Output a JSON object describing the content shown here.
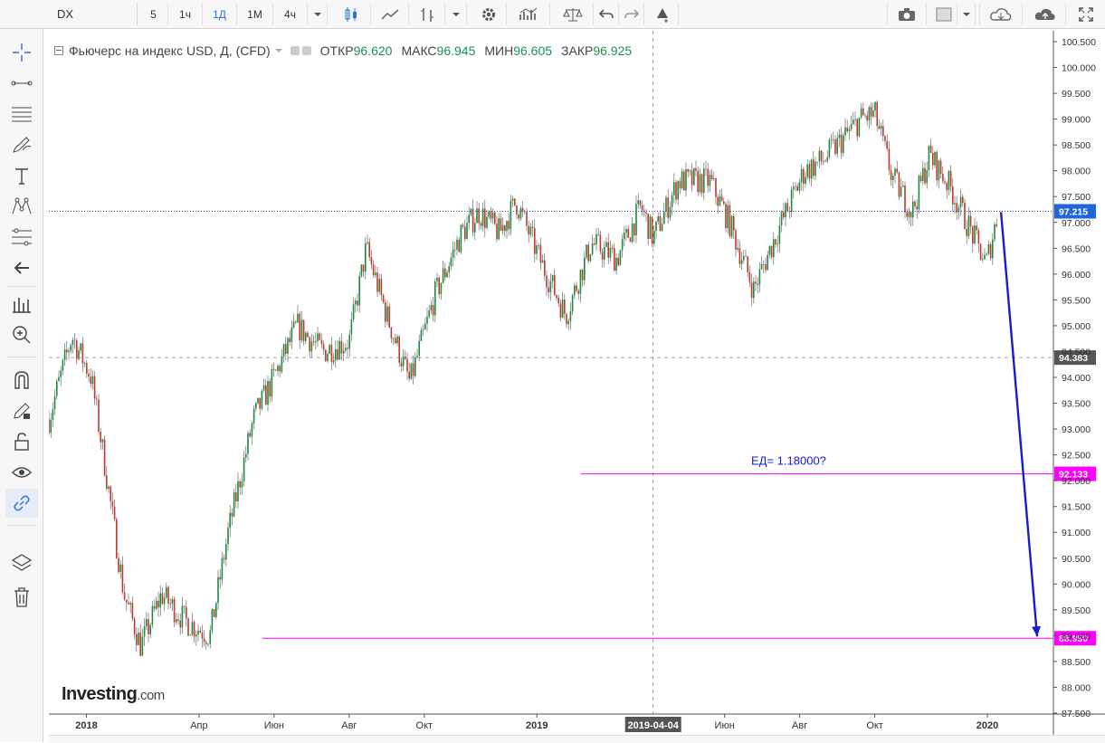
{
  "toolbar": {
    "symbol": "DX",
    "intervals": [
      "5",
      "1ч",
      "1Д",
      "1М",
      "4ч"
    ],
    "active_interval": "1Д"
  },
  "legend": {
    "title": "Фьючерс на индекс USD, Д, (CFD)",
    "open_label": "ОТКР",
    "open_value": "96.620",
    "high_label": "МАКС",
    "high_value": "96.945",
    "low_label": "МИН",
    "low_value": "96.605",
    "close_label": "ЗАКР",
    "close_value": "96.925"
  },
  "logo": {
    "name": "Investing",
    "suffix": ".com"
  },
  "colors": {
    "up": "#26a69a",
    "up_body": "#1e8a3e",
    "down": "#c0392b",
    "accent": "#2f6fde",
    "level_line": "#ff00ff",
    "arrow": "#1a1acf"
  },
  "sidebar_icons": [
    "crosshair-icon",
    "line-tool-icon",
    "channel-icon",
    "brush-icon",
    "text-icon",
    "pattern-icon",
    "fib-icon",
    "back-arrow-icon",
    "measure-icon",
    "zoom-icon",
    "magnet-icon",
    "lock-pencil-icon",
    "lock-icon",
    "eye-icon",
    "link-icon",
    "layers-icon",
    "trash-icon"
  ],
  "chart_data": {
    "type": "candlestick",
    "title": "Фьючерс на индекс USD, Д, (CFD)",
    "y_ticks": [
      "100.500",
      "100.000",
      "99.500",
      "99.000",
      "98.500",
      "98.000",
      "97.500",
      "97.000",
      "96.500",
      "96.000",
      "95.500",
      "95.000",
      "94.500",
      "94.000",
      "93.500",
      "93.000",
      "92.500",
      "92.000",
      "91.500",
      "91.000",
      "90.500",
      "90.000",
      "89.500",
      "89.000",
      "88.500",
      "88.000",
      "87.500"
    ],
    "ylim": [
      87.5,
      100.5
    ],
    "x_ticks": [
      "2018",
      "Апр",
      "Июн",
      "Авг",
      "Окт",
      "2019",
      "2019-04-04",
      "Июн",
      "Авг",
      "Окт",
      "2020"
    ],
    "price_path": [
      {
        "date": "2017-12",
        "value": 93.2
      },
      {
        "date": "2017-12-20",
        "value": 94.8
      },
      {
        "date": "2018-01-05",
        "value": 94.0
      },
      {
        "date": "2018-01-15",
        "value": 92.5
      },
      {
        "date": "2018-02-01",
        "value": 89.8
      },
      {
        "date": "2018-02-15",
        "value": 88.8
      },
      {
        "date": "2018-03-01",
        "value": 89.8
      },
      {
        "date": "2018-03-20",
        "value": 89.3
      },
      {
        "date": "2018-04-10",
        "value": 89.0
      },
      {
        "date": "2018-04-25",
        "value": 91.0
      },
      {
        "date": "2018-05-15",
        "value": 93.2
      },
      {
        "date": "2018-06-01",
        "value": 94.0
      },
      {
        "date": "2018-06-20",
        "value": 95.0
      },
      {
        "date": "2018-07-10",
        "value": 94.5
      },
      {
        "date": "2018-08-01",
        "value": 94.7
      },
      {
        "date": "2018-08-15",
        "value": 96.5
      },
      {
        "date": "2018-09-01",
        "value": 95.2
      },
      {
        "date": "2018-09-20",
        "value": 93.9
      },
      {
        "date": "2018-10-10",
        "value": 95.6
      },
      {
        "date": "2018-11-01",
        "value": 96.8
      },
      {
        "date": "2018-11-15",
        "value": 97.2
      },
      {
        "date": "2018-12-01",
        "value": 96.8
      },
      {
        "date": "2018-12-15",
        "value": 97.4
      },
      {
        "date": "2019-01-05",
        "value": 96.2
      },
      {
        "date": "2019-01-25",
        "value": 95.2
      },
      {
        "date": "2019-02-15",
        "value": 96.6
      },
      {
        "date": "2019-03-05",
        "value": 96.3
      },
      {
        "date": "2019-03-25",
        "value": 97.3
      },
      {
        "date": "2019-04-04",
        "value": 96.7
      },
      {
        "date": "2019-04-25",
        "value": 97.8
      },
      {
        "date": "2019-05-20",
        "value": 97.8
      },
      {
        "date": "2019-06-05",
        "value": 97.0
      },
      {
        "date": "2019-06-25",
        "value": 95.7
      },
      {
        "date": "2019-07-15",
        "value": 96.9
      },
      {
        "date": "2019-08-05",
        "value": 98.0
      },
      {
        "date": "2019-08-20",
        "value": 98.2
      },
      {
        "date": "2019-09-05",
        "value": 98.6
      },
      {
        "date": "2019-09-20",
        "value": 99.0
      },
      {
        "date": "2019-10-01",
        "value": 99.1
      },
      {
        "date": "2019-10-15",
        "value": 97.9
      },
      {
        "date": "2019-11-01",
        "value": 97.2
      },
      {
        "date": "2019-11-15",
        "value": 98.3
      },
      {
        "date": "2019-12-01",
        "value": 97.7
      },
      {
        "date": "2019-12-15",
        "value": 97.0
      },
      {
        "date": "2019-12-31",
        "value": 96.2
      },
      {
        "date": "2020-01-10",
        "value": 97.2
      }
    ],
    "last_price_label": "97.215",
    "crosshair_price_label": "94.383",
    "crosshair_date_label": "2019-04-04",
    "levels": [
      {
        "value": 92.133,
        "label": "92.133"
      },
      {
        "value": 88.95,
        "label": "88.950"
      }
    ],
    "annotation": "ЕД= 1.18000?",
    "forecast_arrow": {
      "from_value": 97.2,
      "to_value": 88.95
    }
  }
}
